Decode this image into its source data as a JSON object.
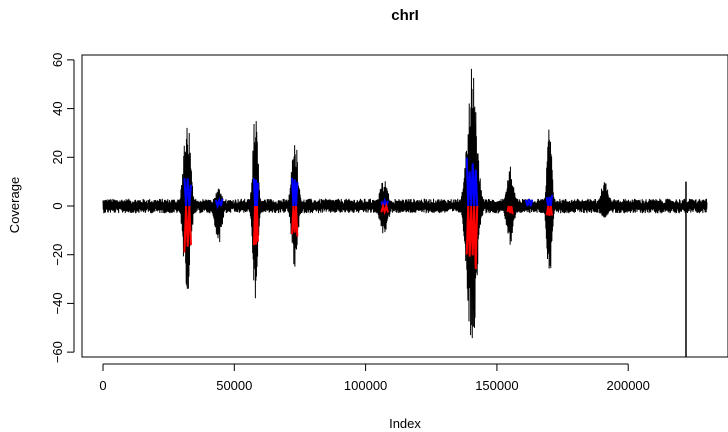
{
  "chart_data": {
    "type": "line",
    "title": "chrI",
    "xlabel": "Index",
    "ylabel": "Coverage",
    "xlim": [
      -8000,
      238000
    ],
    "ylim": [
      -62,
      62
    ],
    "x_ticks": [
      0,
      50000,
      100000,
      150000,
      200000
    ],
    "x_tick_labels": [
      "0",
      "50000",
      "100000",
      "150000",
      "200000"
    ],
    "y_ticks": [
      -60,
      -40,
      -20,
      0,
      20,
      40,
      60
    ],
    "y_tick_labels": [
      "−60",
      "−40",
      "−20",
      "0",
      "20",
      "40",
      "60"
    ],
    "grid": false,
    "x_range": [
      0,
      230000
    ],
    "series": [
      {
        "color": "#000000",
        "baseline_noise": 3,
        "peaks": [
          {
            "x": 32000,
            "pos": 38,
            "neg": -38,
            "width": 2500
          },
          {
            "x": 44000,
            "pos": 8,
            "neg": -16,
            "width": 2500
          },
          {
            "x": 58000,
            "pos": 41,
            "neg": -39,
            "width": 1800
          },
          {
            "x": 73000,
            "pos": 31,
            "neg": -26,
            "width": 2200
          },
          {
            "x": 107000,
            "pos": 11,
            "neg": -12,
            "width": 3000
          },
          {
            "x": 140500,
            "pos": 58,
            "neg": -59,
            "width": 3500
          },
          {
            "x": 155000,
            "pos": 17,
            "neg": -17,
            "width": 2500
          },
          {
            "x": 170000,
            "pos": 35,
            "neg": -31,
            "width": 1800
          },
          {
            "x": 191000,
            "pos": 10,
            "neg": -5,
            "width": 3000
          }
        ],
        "spike": {
          "x": 222000,
          "pos": 10,
          "neg": -62
        }
      },
      {
        "color": "#0000ff",
        "segments": [
          {
            "x0": 31000,
            "x1": 33500,
            "y": 14
          },
          {
            "x0": 43000,
            "x1": 45500,
            "y": 3
          },
          {
            "x0": 57500,
            "x1": 59000,
            "y": 14
          },
          {
            "x0": 72000,
            "x1": 74000,
            "y": 12
          },
          {
            "x0": 106000,
            "x1": 108500,
            "y": 3
          },
          {
            "x0": 138500,
            "x1": 142500,
            "y": 20
          },
          {
            "x0": 161000,
            "x1": 163500,
            "y": 3
          },
          {
            "x0": 169000,
            "x1": 171000,
            "y": 5
          }
        ]
      },
      {
        "color": "#ff0000",
        "segments": [
          {
            "x0": 31000,
            "x1": 33500,
            "y": -20
          },
          {
            "x0": 57500,
            "x1": 59000,
            "y": -18
          },
          {
            "x0": 72000,
            "x1": 74000,
            "y": -13
          },
          {
            "x0": 106000,
            "x1": 108500,
            "y": -3
          },
          {
            "x0": 138500,
            "x1": 142500,
            "y": -30
          },
          {
            "x0": 154000,
            "x1": 156000,
            "y": -4
          },
          {
            "x0": 169000,
            "x1": 171000,
            "y": -5
          }
        ]
      }
    ]
  }
}
